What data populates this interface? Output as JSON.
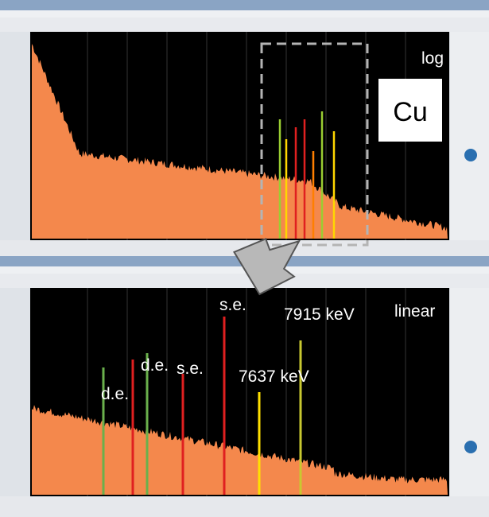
{
  "top_panel": {
    "scale_label": "log",
    "element_label": "Cu"
  },
  "bottom_panel": {
    "scale_label": "linear",
    "annotations": [
      "s.e.",
      "7915 keV",
      "d.e.",
      "s.e.",
      "7637 keV",
      "d.e."
    ]
  }
}
